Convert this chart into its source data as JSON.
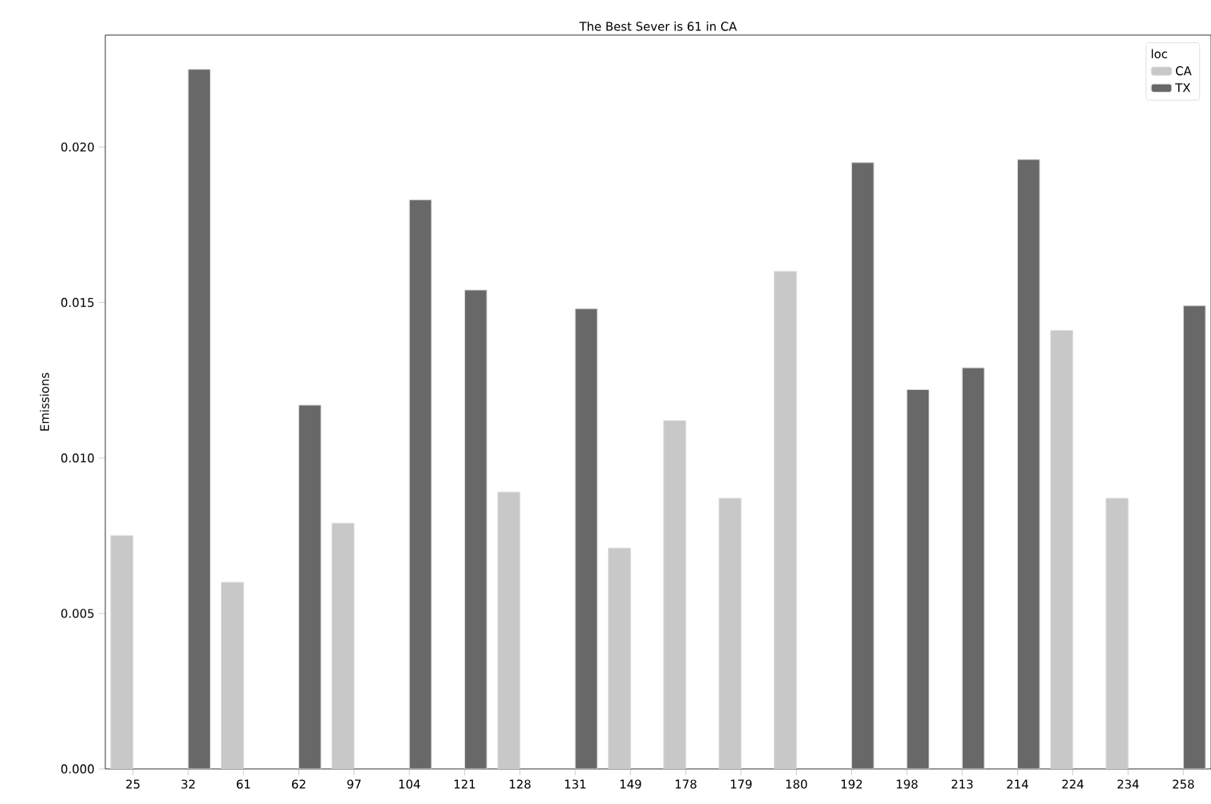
{
  "chart_data": {
    "type": "bar",
    "title": "The Best Sever is 61 in CA",
    "ylabel": "Emissions",
    "categories": [
      "25",
      "32",
      "61",
      "62",
      "97",
      "104",
      "121",
      "128",
      "131",
      "149",
      "178",
      "179",
      "180",
      "192",
      "198",
      "213",
      "214",
      "224",
      "234",
      "258"
    ],
    "series": [
      {
        "name": "CA",
        "color": "#c8c8c8",
        "values": [
          0.0075,
          null,
          0.006,
          null,
          0.0079,
          null,
          null,
          0.0089,
          null,
          0.0071,
          0.0112,
          0.0087,
          0.016,
          null,
          null,
          null,
          null,
          0.0141,
          0.0087,
          null
        ]
      },
      {
        "name": "TX",
        "color": "#686868",
        "values": [
          null,
          0.0225,
          null,
          0.0117,
          null,
          0.0183,
          0.0154,
          null,
          0.0148,
          null,
          null,
          null,
          null,
          0.0195,
          0.0122,
          0.0129,
          0.0196,
          null,
          null,
          0.0149
        ]
      }
    ],
    "ylim": [
      0,
      0.0236
    ],
    "yticks": [
      {
        "value": 0,
        "label": "0.000"
      },
      {
        "value": 0.005,
        "label": "0.005"
      },
      {
        "value": 0.01,
        "label": "0.010"
      },
      {
        "value": 0.015,
        "label": "0.015"
      },
      {
        "value": 0.02,
        "label": "0.020"
      }
    ],
    "legend": "top right",
    "legend_title": "loc"
  }
}
